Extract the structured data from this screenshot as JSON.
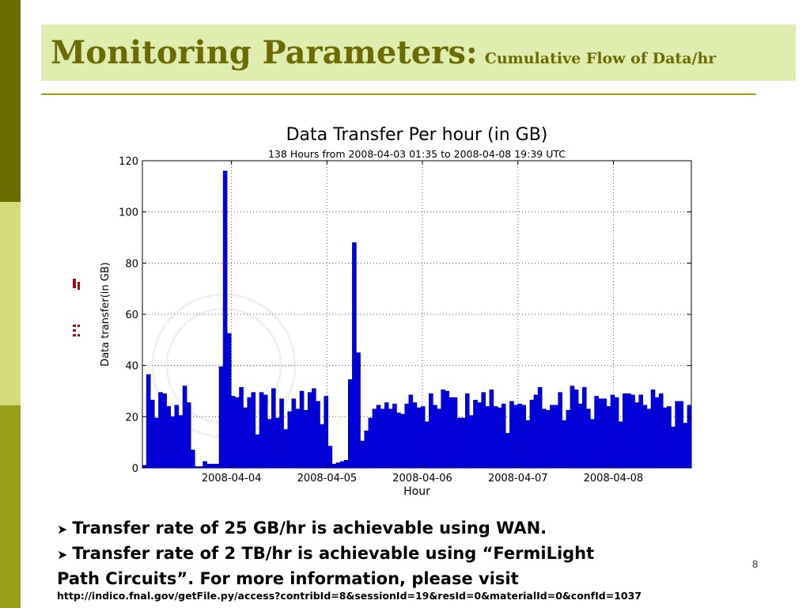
{
  "slide": {
    "title": "Monitoring Parameters:",
    "subtitle": "Cumulative Flow of Data/hr",
    "slide_number": "8",
    "bullets": [
      "Transfer rate of 25 GB/hr is achievable using WAN.",
      "Transfer rate of 2 TB/hr is achievable using “FermiLight",
      "Path Circuits”. For more information, please visit"
    ],
    "url": "http://indico.fnal.gov/getFile.py/access?contribId=8&sessionId=19&resId=0&materialId=0&confId=1037",
    "colors": {
      "sidebar_dark": "#6b6b00",
      "sidebar_light": "#d6db7a",
      "sidebar_mid": "#9aa01c",
      "title_bg": "#dfeeb0",
      "title_text": "#6b6b00",
      "bar_fill": "#0000e0"
    }
  },
  "chart_data": {
    "type": "bar",
    "title": "Data Transfer Per hour (in GB)",
    "subtitle": "138 Hours from 2008-04-03 01:35 to  2008-04-08 19:39 UTC",
    "xlabel": "Hour",
    "ylabel": "Data transfer(in GB)",
    "ylim": [
      0,
      120
    ],
    "yticks": [
      0,
      20,
      40,
      60,
      80,
      100,
      120
    ],
    "xlim_hours_from_start": [
      0,
      138
    ],
    "xticks": [
      {
        "label": "2008-04-04",
        "hour": 22.4
      },
      {
        "label": "2008-04-05",
        "hour": 46.4
      },
      {
        "label": "2008-04-06",
        "hour": 70.4
      },
      {
        "label": "2008-04-07",
        "hour": 94.4
      },
      {
        "label": "2008-04-08",
        "hour": 118.4
      }
    ],
    "grid": true,
    "values": [
      1,
      36.5,
      26.5,
      19.5,
      29.5,
      29,
      24,
      20,
      24.5,
      20.5,
      32,
      25.5,
      7,
      0.5,
      0.5,
      2.5,
      1.5,
      1.5,
      1.5,
      39.5,
      116,
      52.5,
      28,
      27.5,
      31.5,
      23.5,
      27.5,
      29.5,
      13,
      29.5,
      28.5,
      19,
      31,
      19.5,
      27,
      15,
      22,
      27,
      23,
      30,
      22.5,
      29.5,
      31,
      26,
      17,
      28,
      8.5,
      1.5,
      2,
      2.5,
      3,
      34.5,
      88,
      45,
      10.5,
      14.5,
      19.5,
      23,
      24.5,
      23,
      25.5,
      23,
      25,
      21.5,
      21,
      25,
      28.5,
      25.5,
      23.5,
      24,
      18,
      29,
      24.5,
      23,
      30.5,
      30,
      27.5,
      27.5,
      19.5,
      19.5,
      29,
      20.5,
      26.5,
      25.5,
      29.5,
      24,
      30.5,
      24,
      23.5,
      25,
      13.5,
      26,
      24.5,
      25,
      24.5,
      18.5,
      26.5,
      28.5,
      31.5,
      23,
      22.5,
      24.5,
      24.5,
      29.5,
      18.5,
      22.5,
      32,
      30.5,
      25,
      31.5,
      23,
      19,
      28,
      27,
      27,
      24,
      28.5,
      27.5,
      18,
      29,
      29,
      28.5,
      25.5,
      28.5,
      24.5,
      23,
      30.5,
      27.5,
      29,
      23.5,
      24,
      16,
      26,
      26,
      17.5,
      24.5
    ]
  }
}
